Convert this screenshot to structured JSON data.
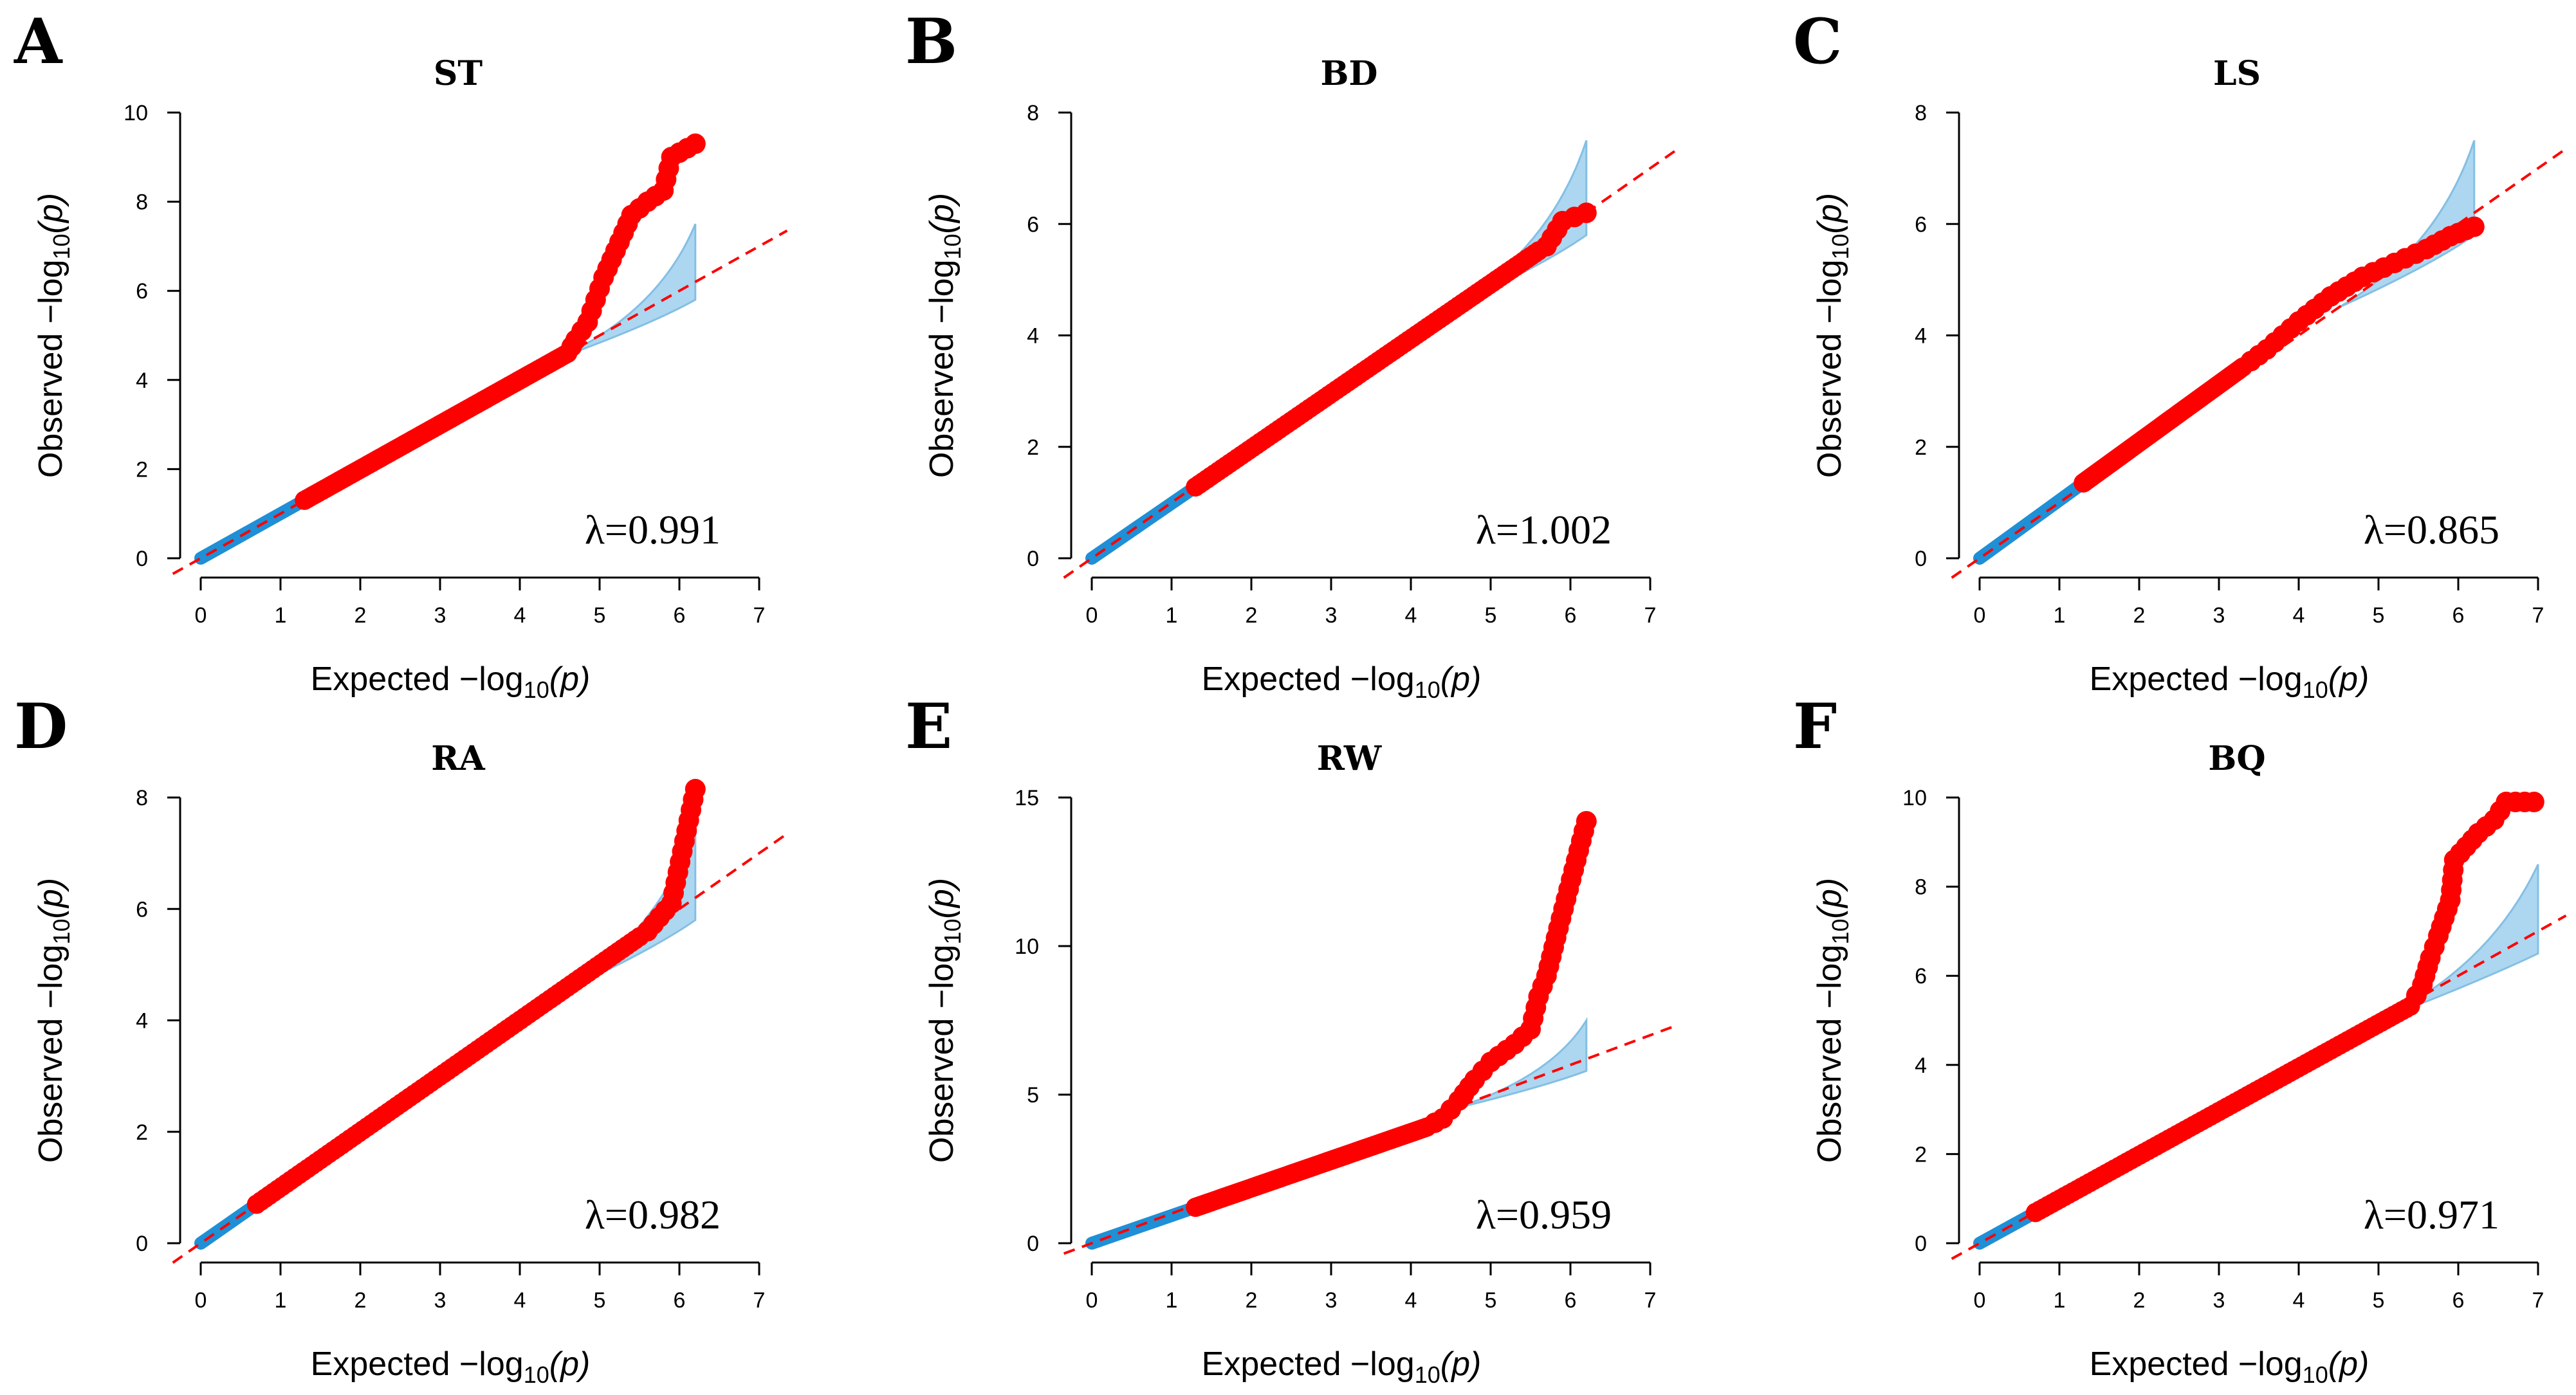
{
  "colors": {
    "observed_significant": "#ff0000",
    "observed_null": "#1f8fd6",
    "confidence_band": "#9fd0ee",
    "confidence_band_edge": "#6fb4e0",
    "reference_line": "#ff0000",
    "axis": "#000000"
  },
  "chart_data": [
    {
      "id": "A",
      "type": "scatter",
      "title": "ST",
      "lambda": "λ=0.991",
      "xlabel": "Expected",
      "ylabel": "Observed",
      "log_label": "−log",
      "log_sub": "10",
      "log_arg": "(p)",
      "xlim": [
        0,
        7
      ],
      "ylim": [
        0,
        10
      ],
      "xticks": [
        0,
        1,
        2,
        3,
        4,
        5,
        6,
        7
      ],
      "yticks": [
        0,
        2,
        4,
        6,
        8,
        10
      ],
      "null_end": 1.3,
      "linear_end": 4.6,
      "slope": 1.0,
      "tail": [
        [
          4.7,
          4.9
        ],
        [
          4.85,
          5.3
        ],
        [
          4.95,
          5.8
        ],
        [
          5.05,
          6.3
        ],
        [
          5.15,
          6.7
        ],
        [
          5.3,
          7.3
        ],
        [
          5.4,
          7.7
        ],
        [
          5.6,
          8.0
        ],
        [
          5.8,
          8.25
        ],
        [
          5.9,
          9.0
        ],
        [
          6.2,
          9.3
        ]
      ],
      "band": {
        "start": 4.5,
        "end": 6.2,
        "upper_end": 7.5,
        "lower_end": 5.8
      }
    },
    {
      "id": "B",
      "type": "scatter",
      "title": "BD",
      "lambda": "λ=1.002",
      "xlabel": "Expected",
      "ylabel": "Observed",
      "log_label": "−log",
      "log_sub": "10",
      "log_arg": "(p)",
      "xlim": [
        0,
        7
      ],
      "ylim": [
        0,
        8
      ],
      "xticks": [
        0,
        1,
        2,
        3,
        4,
        5,
        6,
        7
      ],
      "yticks": [
        0,
        2,
        4,
        6,
        8
      ],
      "null_end": 1.3,
      "linear_end": 5.6,
      "slope": 0.985,
      "tail": [
        [
          5.7,
          5.6
        ],
        [
          5.9,
          6.05
        ],
        [
          6.2,
          6.2
        ]
      ],
      "band": {
        "start": 4.5,
        "end": 6.2,
        "upper_end": 7.5,
        "lower_end": 5.8
      }
    },
    {
      "id": "C",
      "type": "scatter",
      "title": "LS",
      "lambda": "λ=0.865",
      "xlabel": "Expected",
      "ylabel": "Observed",
      "log_label": "−log",
      "log_sub": "10",
      "log_arg": "(p)",
      "xlim": [
        0,
        7
      ],
      "ylim": [
        0,
        8
      ],
      "xticks": [
        0,
        1,
        2,
        3,
        4,
        5,
        6,
        7
      ],
      "yticks": [
        0,
        2,
        4,
        6,
        8
      ],
      "null_end": 1.3,
      "linear_end": 3.3,
      "slope": 1.04,
      "tail": [
        [
          3.6,
          3.75
        ],
        [
          4.0,
          4.25
        ],
        [
          4.4,
          4.7
        ],
        [
          4.8,
          5.05
        ],
        [
          5.2,
          5.3
        ],
        [
          5.6,
          5.55
        ],
        [
          5.9,
          5.78
        ],
        [
          6.2,
          5.95
        ]
      ],
      "band": {
        "start": 4.5,
        "end": 6.2,
        "upper_end": 7.5,
        "lower_end": 5.8
      }
    },
    {
      "id": "D",
      "type": "scatter",
      "title": "RA",
      "lambda": "λ=0.982",
      "xlabel": "Expected",
      "ylabel": "Observed",
      "log_label": "−log",
      "log_sub": "10",
      "log_arg": "(p)",
      "xlim": [
        0,
        7
      ],
      "ylim": [
        0,
        8
      ],
      "xticks": [
        0,
        1,
        2,
        3,
        4,
        5,
        6,
        7
      ],
      "yticks": [
        0,
        2,
        4,
        6,
        8
      ],
      "null_end": 0.7,
      "linear_end": 5.5,
      "slope": 1.0,
      "tail": [
        [
          5.6,
          5.6
        ],
        [
          5.9,
          6.1
        ],
        [
          6.2,
          8.15
        ]
      ],
      "band": {
        "start": 4.5,
        "end": 6.2,
        "upper_end": 7.5,
        "lower_end": 5.8
      }
    },
    {
      "id": "E",
      "type": "scatter",
      "title": "RW",
      "lambda": "λ=0.959",
      "xlabel": "Expected",
      "ylabel": "Observed",
      "log_label": "−log",
      "log_sub": "10",
      "log_arg": "(p)",
      "xlim": [
        0,
        7
      ],
      "ylim": [
        0,
        15
      ],
      "xticks": [
        0,
        1,
        2,
        3,
        4,
        5,
        6,
        7
      ],
      "yticks": [
        0,
        5,
        10,
        15
      ],
      "null_end": 1.3,
      "linear_end": 4.2,
      "slope": 0.93,
      "tail": [
        [
          4.4,
          4.2
        ],
        [
          4.6,
          4.8
        ],
        [
          4.8,
          5.5
        ],
        [
          5.0,
          6.1
        ],
        [
          5.3,
          6.7
        ],
        [
          5.5,
          7.2
        ],
        [
          5.6,
          8.3
        ],
        [
          5.7,
          9.0
        ],
        [
          5.85,
          10.6
        ],
        [
          6.2,
          14.2
        ]
      ],
      "band": {
        "start": 4.5,
        "end": 6.2,
        "upper_end": 7.5,
        "lower_end": 5.8
      }
    },
    {
      "id": "F",
      "type": "scatter",
      "title": "BQ",
      "lambda": "λ=0.971",
      "xlabel": "Expected",
      "ylabel": "Observed",
      "log_label": "−log",
      "log_sub": "10",
      "log_arg": "(p)",
      "xlim": [
        0,
        7
      ],
      "ylim": [
        0,
        10
      ],
      "xticks": [
        0,
        1,
        2,
        3,
        4,
        5,
        6,
        7
      ],
      "yticks": [
        0,
        2,
        4,
        6,
        8,
        10
      ],
      "null_end": 0.7,
      "linear_end": 5.4,
      "slope": 0.985,
      "tail": [
        [
          5.55,
          5.8
        ],
        [
          5.65,
          6.4
        ],
        [
          5.75,
          6.9
        ],
        [
          5.9,
          7.7
        ],
        [
          5.95,
          8.6
        ],
        [
          6.1,
          8.9
        ],
        [
          6.25,
          9.2
        ],
        [
          6.45,
          9.5
        ],
        [
          6.6,
          9.9
        ],
        [
          6.95,
          9.9
        ]
      ],
      "band": {
        "start": 5.0,
        "end": 7.0,
        "upper_end": 8.5,
        "lower_end": 6.5
      }
    }
  ]
}
